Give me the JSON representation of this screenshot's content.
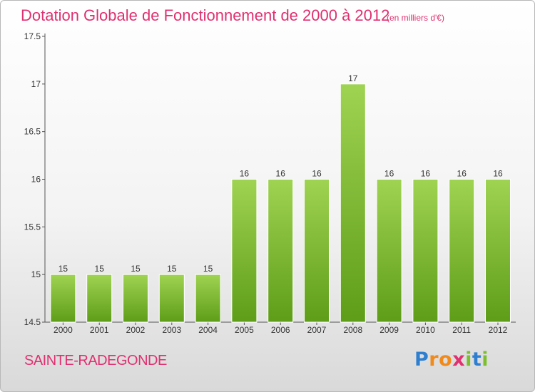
{
  "chart_data": {
    "type": "bar",
    "title": "Dotation Globale de Fonctionnement de 2000 à 2012",
    "unit_note": "(en milliers d'€)",
    "categories": [
      "2000",
      "2001",
      "2002",
      "2003",
      "2004",
      "2005",
      "2006",
      "2007",
      "2008",
      "2009",
      "2010",
      "2011",
      "2012"
    ],
    "values": [
      15,
      15,
      15,
      15,
      15,
      16,
      16,
      16,
      17,
      16,
      16,
      16,
      16
    ],
    "data_labels": [
      "15",
      "15",
      "15",
      "15",
      "15",
      "16",
      "16",
      "16",
      "17",
      "16",
      "16",
      "16",
      "16"
    ],
    "ylim": [
      14.5,
      17.5
    ],
    "y_ticks": [
      "14.5",
      "15",
      "15.5",
      "16",
      "16.5",
      "17",
      "17.5"
    ],
    "xlabel": "",
    "ylabel": "",
    "grid": false,
    "bar_color": "#86c23b"
  },
  "footer": {
    "place": "SAINTE-RADEGONDE",
    "brand_letters": [
      {
        "ch": "P",
        "color": "#2f7fd0"
      },
      {
        "ch": "r",
        "color": "#f08a1c"
      },
      {
        "ch": "o",
        "color": "#f08a1c"
      },
      {
        "ch": "x",
        "color": "#e0306f"
      },
      {
        "ch": "i",
        "color": "#7cbf2e"
      },
      {
        "ch": "t",
        "color": "#2f7fd0"
      },
      {
        "ch": "i",
        "color": "#7cbf2e"
      }
    ]
  },
  "colors": {
    "title": "#e0306f",
    "axis": "#555555"
  }
}
